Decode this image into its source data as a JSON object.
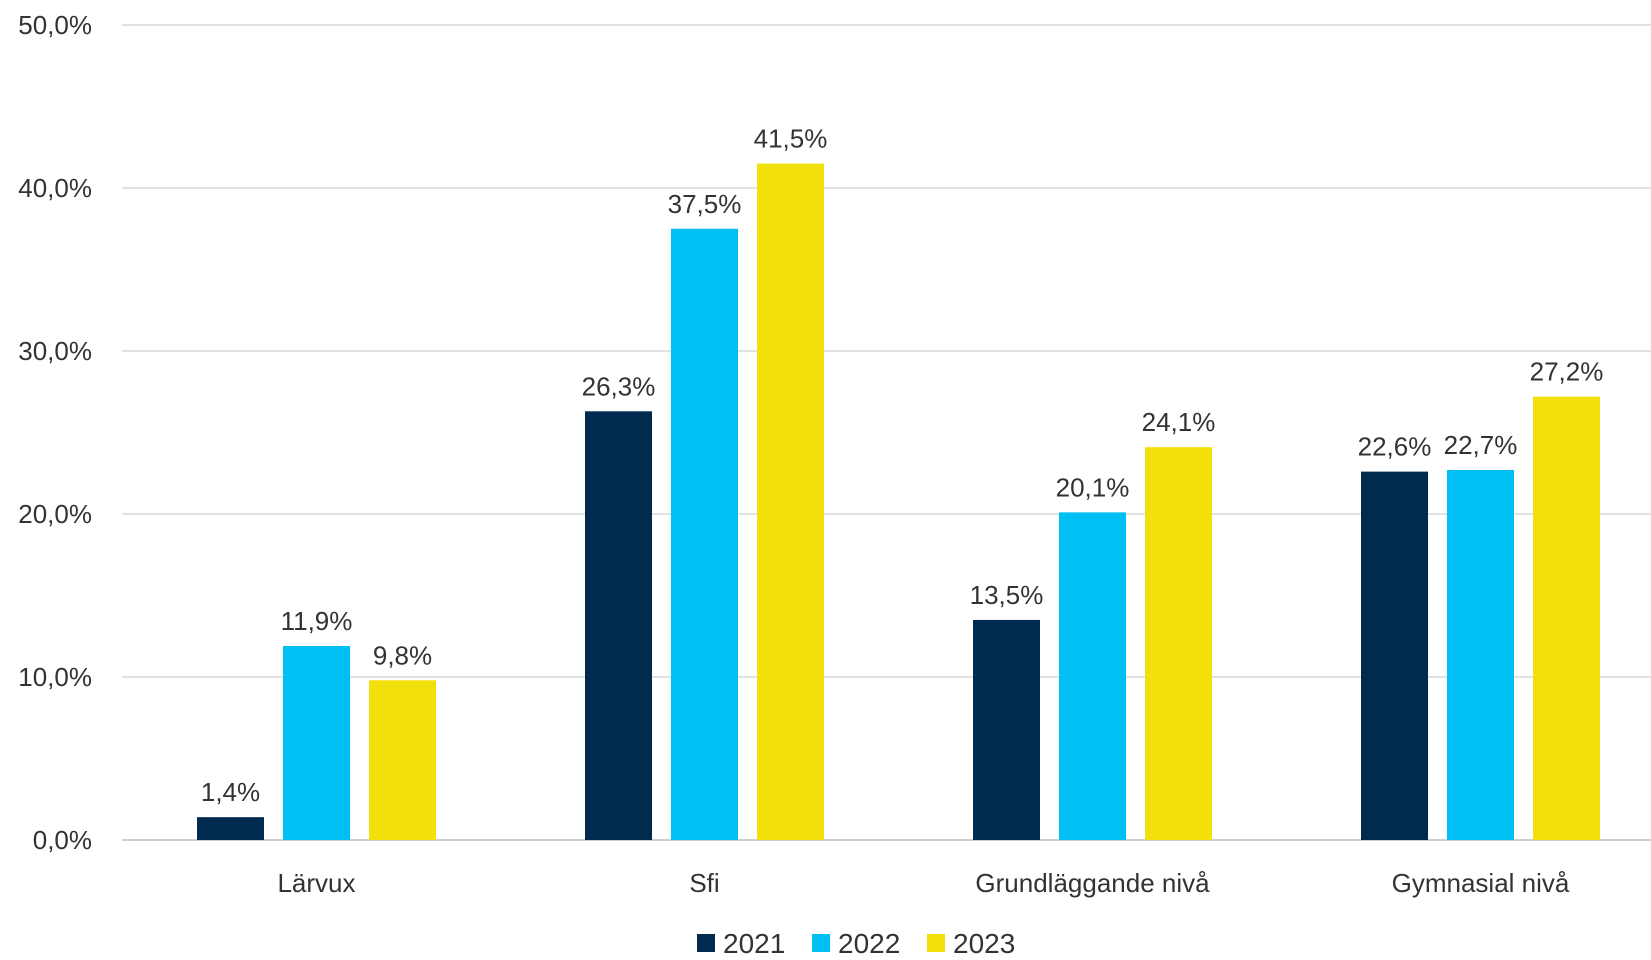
{
  "chart_data": {
    "type": "bar",
    "title": "",
    "xlabel": "",
    "ylabel": "",
    "categories": [
      "Lärvux",
      "Sfi",
      "Grundläggande nivå",
      "Gymnasial nivå"
    ],
    "series": [
      {
        "name": "2021",
        "color": "#002b4e",
        "values": [
          1.4,
          26.3,
          13.5,
          22.6
        ],
        "labels": [
          "1,4%",
          "26,3%",
          "13,5%",
          "22,6%"
        ]
      },
      {
        "name": "2022",
        "color": "#00bff3",
        "values": [
          11.9,
          37.5,
          20.1,
          22.7
        ],
        "labels": [
          "11,9%",
          "37,5%",
          "20,1%",
          "22,7%"
        ]
      },
      {
        "name": "2023",
        "color": "#f2e00b",
        "values": [
          9.8,
          41.5,
          24.1,
          27.2
        ],
        "labels": [
          "9,8%",
          "41,5%",
          "24,1%",
          "27,2%"
        ]
      }
    ],
    "ylim": [
      0,
      50
    ],
    "yticks": [
      0,
      10,
      20,
      30,
      40,
      50
    ],
    "ytick_labels": [
      "0,0%",
      "10,0%",
      "20,0%",
      "30,0%",
      "40,0%",
      "50,0%"
    ],
    "grid": true,
    "legend": "bottom-center"
  }
}
